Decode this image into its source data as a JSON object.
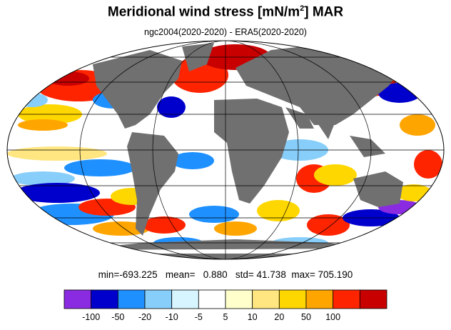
{
  "title_main": "Meridional wind stress [mN/m",
  "title_sup": "2",
  "title_tail": "] MAR",
  "subtitle": "ngc2004(2020-2020) - ERA5(2020-2020)",
  "stats": {
    "min_label": "min=",
    "min": "-693.225",
    "mean_label": "mean=",
    "mean": "0.880",
    "std_label": "std=",
    "std": "41.738",
    "max_label": "max=",
    "max": "705.190"
  },
  "colorbar": {
    "colors": [
      "#8a2be2",
      "#0000cd",
      "#1e90ff",
      "#87cefa",
      "#d6f5ff",
      "#ffffff",
      "#ffffcc",
      "#ffe680",
      "#ffd700",
      "#ffa500",
      "#ff2400",
      "#c80000"
    ],
    "labels": [
      "-100",
      "-50",
      "-20",
      "-10",
      "-5",
      "5",
      "10",
      "20",
      "50",
      "100"
    ]
  },
  "map": {
    "projection": "Mollweide",
    "ocean_color": "#ffffff",
    "land_color": "#707070",
    "grid_color": "#000000"
  }
}
